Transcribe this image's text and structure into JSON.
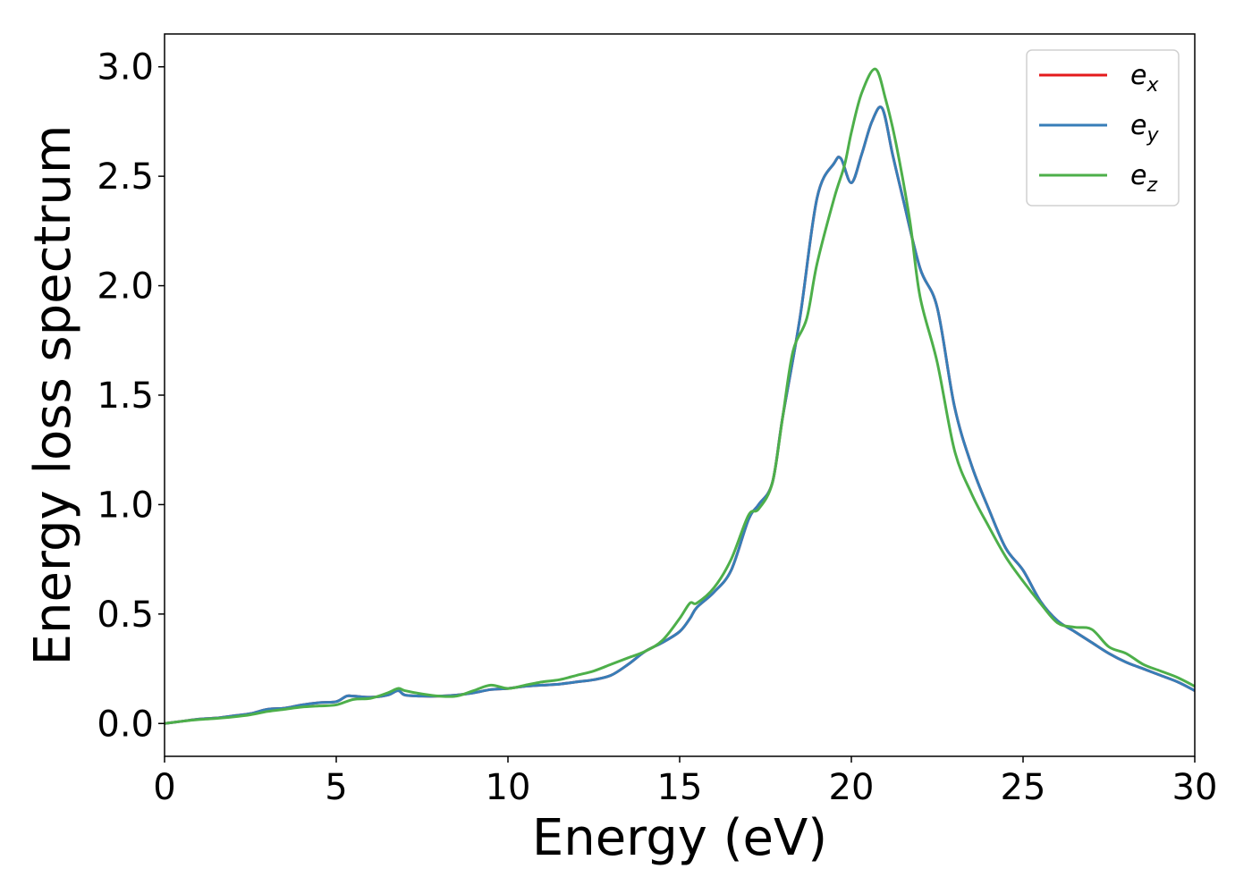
{
  "chart_data": {
    "type": "line",
    "xlabel": "Energy (eV)",
    "ylabel": "Energy loss spectrum",
    "xlim": [
      0,
      30
    ],
    "ylim": [
      -0.15,
      3.15
    ],
    "xticks": [
      0,
      5,
      10,
      15,
      20,
      25,
      30
    ],
    "xtick_labels": [
      "0",
      "5",
      "10",
      "15",
      "20",
      "25",
      "30"
    ],
    "yticks": [
      0.0,
      0.5,
      1.0,
      1.5,
      2.0,
      2.5,
      3.0
    ],
    "ytick_labels": [
      "0.0",
      "0.5",
      "1.0",
      "1.5",
      "2.0",
      "2.5",
      "3.0"
    ],
    "grid": false,
    "legend_position": "top-right",
    "series": [
      {
        "name": "e_x",
        "base": "e",
        "sub": "x",
        "color": "#e41a1c",
        "x": [
          0,
          0.5,
          1,
          1.5,
          2,
          2.5,
          3,
          3.5,
          4,
          4.5,
          5,
          5.3,
          5.5,
          6,
          6.5,
          6.8,
          7,
          7.5,
          8,
          8.5,
          9,
          9.5,
          10,
          10.5,
          11,
          11.5,
          12,
          12.5,
          13,
          13.5,
          14,
          14.5,
          15,
          15.3,
          15.5,
          16,
          16.5,
          17,
          17.3,
          17.7,
          18,
          18.5,
          19,
          19.5,
          19.7,
          20,
          20.3,
          20.6,
          20.9,
          21.2,
          21.5,
          22,
          22.5,
          23,
          23.5,
          24,
          24.5,
          25,
          25.5,
          26,
          26.5,
          27,
          27.5,
          28,
          28.5,
          29,
          29.5,
          30
        ],
        "y": [
          0,
          0.01,
          0.02,
          0.025,
          0.035,
          0.045,
          0.065,
          0.07,
          0.085,
          0.095,
          0.1,
          0.125,
          0.125,
          0.12,
          0.13,
          0.15,
          0.13,
          0.125,
          0.125,
          0.13,
          0.14,
          0.155,
          0.16,
          0.17,
          0.175,
          0.18,
          0.19,
          0.2,
          0.22,
          0.27,
          0.33,
          0.37,
          0.42,
          0.48,
          0.53,
          0.6,
          0.7,
          0.93,
          1.0,
          1.1,
          1.4,
          1.85,
          2.4,
          2.56,
          2.58,
          2.47,
          2.6,
          2.75,
          2.81,
          2.6,
          2.4,
          2.08,
          1.9,
          1.45,
          1.18,
          0.98,
          0.8,
          0.7,
          0.56,
          0.47,
          0.42,
          0.37,
          0.32,
          0.28,
          0.25,
          0.22,
          0.19,
          0.15
        ]
      },
      {
        "name": "e_y",
        "base": "e",
        "sub": "y",
        "color": "#377eb8",
        "x": [
          0,
          0.5,
          1,
          1.5,
          2,
          2.5,
          3,
          3.5,
          4,
          4.5,
          5,
          5.3,
          5.5,
          6,
          6.5,
          6.8,
          7,
          7.5,
          8,
          8.5,
          9,
          9.5,
          10,
          10.5,
          11,
          11.5,
          12,
          12.5,
          13,
          13.5,
          14,
          14.5,
          15,
          15.3,
          15.5,
          16,
          16.5,
          17,
          17.3,
          17.7,
          18,
          18.5,
          19,
          19.5,
          19.7,
          20,
          20.3,
          20.6,
          20.9,
          21.2,
          21.5,
          22,
          22.5,
          23,
          23.5,
          24,
          24.5,
          25,
          25.5,
          26,
          26.5,
          27,
          27.5,
          28,
          28.5,
          29,
          29.5,
          30
        ],
        "y": [
          0,
          0.01,
          0.02,
          0.025,
          0.035,
          0.045,
          0.065,
          0.07,
          0.085,
          0.095,
          0.1,
          0.125,
          0.125,
          0.12,
          0.13,
          0.15,
          0.13,
          0.125,
          0.125,
          0.13,
          0.14,
          0.155,
          0.16,
          0.17,
          0.175,
          0.18,
          0.19,
          0.2,
          0.22,
          0.27,
          0.33,
          0.37,
          0.42,
          0.48,
          0.53,
          0.6,
          0.7,
          0.93,
          1.0,
          1.1,
          1.4,
          1.85,
          2.4,
          2.56,
          2.58,
          2.47,
          2.6,
          2.75,
          2.81,
          2.6,
          2.4,
          2.08,
          1.9,
          1.45,
          1.18,
          0.98,
          0.8,
          0.7,
          0.56,
          0.47,
          0.42,
          0.37,
          0.32,
          0.28,
          0.25,
          0.22,
          0.19,
          0.15
        ]
      },
      {
        "name": "e_z",
        "base": "e",
        "sub": "z",
        "color": "#4daf4a",
        "x": [
          0,
          0.5,
          1,
          1.5,
          2,
          2.5,
          3,
          3.5,
          4,
          4.5,
          5,
          5.5,
          6,
          6.5,
          6.8,
          7,
          7.5,
          8,
          8.5,
          9,
          9.5,
          10,
          10.5,
          11,
          11.5,
          12,
          12.5,
          13,
          13.5,
          14,
          14.5,
          15,
          15.3,
          15.5,
          16,
          16.5,
          17,
          17.3,
          17.7,
          18,
          18.3,
          18.7,
          19,
          19.5,
          19.8,
          20,
          20.3,
          20.7,
          21,
          21.3,
          21.7,
          22,
          22.5,
          23,
          23.5,
          24,
          24.5,
          25,
          25.5,
          26,
          26.5,
          27,
          27.5,
          28,
          28.5,
          29,
          29.5,
          30
        ],
        "y": [
          0,
          0.01,
          0.018,
          0.023,
          0.03,
          0.04,
          0.055,
          0.065,
          0.075,
          0.08,
          0.085,
          0.11,
          0.115,
          0.14,
          0.16,
          0.15,
          0.135,
          0.125,
          0.125,
          0.15,
          0.175,
          0.16,
          0.175,
          0.19,
          0.2,
          0.22,
          0.24,
          0.27,
          0.3,
          0.33,
          0.38,
          0.48,
          0.55,
          0.55,
          0.62,
          0.75,
          0.95,
          0.98,
          1.1,
          1.4,
          1.7,
          1.85,
          2.1,
          2.4,
          2.55,
          2.7,
          2.88,
          2.99,
          2.85,
          2.65,
          2.3,
          1.95,
          1.65,
          1.25,
          1.05,
          0.9,
          0.76,
          0.65,
          0.55,
          0.46,
          0.44,
          0.43,
          0.35,
          0.32,
          0.27,
          0.24,
          0.21,
          0.17
        ]
      }
    ]
  }
}
